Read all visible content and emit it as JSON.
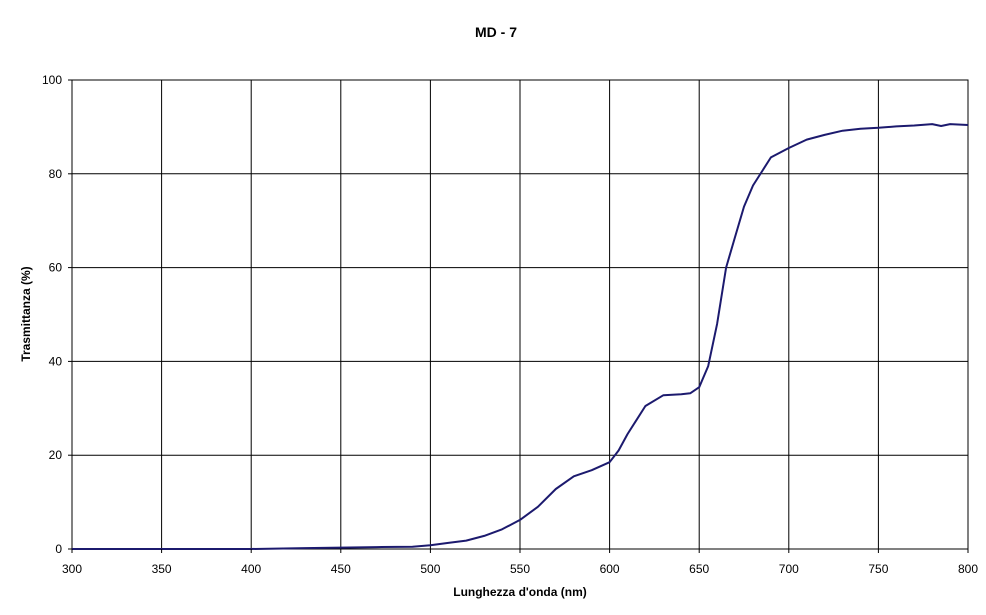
{
  "chart_data": {
    "type": "line",
    "title": "MD - 7",
    "xlabel": "Lunghezza d'onda   (nm)",
    "ylabel": "Trasmittanza   (%)",
    "xlim": [
      300,
      800
    ],
    "ylim": [
      0,
      100
    ],
    "x_ticks": [
      300,
      350,
      400,
      450,
      500,
      550,
      600,
      650,
      700,
      750,
      800
    ],
    "y_ticks": [
      0,
      20,
      40,
      60,
      80,
      100
    ],
    "grid": true,
    "legend": "none",
    "colors": {
      "line": "#1c1a6e",
      "grid": "#000000",
      "background": "#ffffff"
    },
    "series": [
      {
        "x": [
          300,
          350,
          400,
          430,
          450,
          470,
          490,
          500,
          510,
          520,
          530,
          540,
          550,
          560,
          570,
          580,
          590,
          600,
          605,
          610,
          620,
          630,
          640,
          645,
          650,
          655,
          660,
          665,
          670,
          675,
          680,
          690,
          700,
          710,
          720,
          730,
          740,
          750,
          760,
          770,
          780,
          785,
          790,
          800
        ],
        "y": [
          0,
          0,
          0,
          0.2,
          0.3,
          0.4,
          0.5,
          0.8,
          1.3,
          1.8,
          2.8,
          4.2,
          6.2,
          9.0,
          12.8,
          15.5,
          16.8,
          18.5,
          21.0,
          24.5,
          30.5,
          32.8,
          33.0,
          33.2,
          34.5,
          39.0,
          48.0,
          60.0,
          66.5,
          73.0,
          77.5,
          83.5,
          85.5,
          87.3,
          88.3,
          89.2,
          89.6,
          89.8,
          90.1,
          90.3,
          90.6,
          90.2,
          90.6,
          90.4
        ]
      }
    ]
  }
}
